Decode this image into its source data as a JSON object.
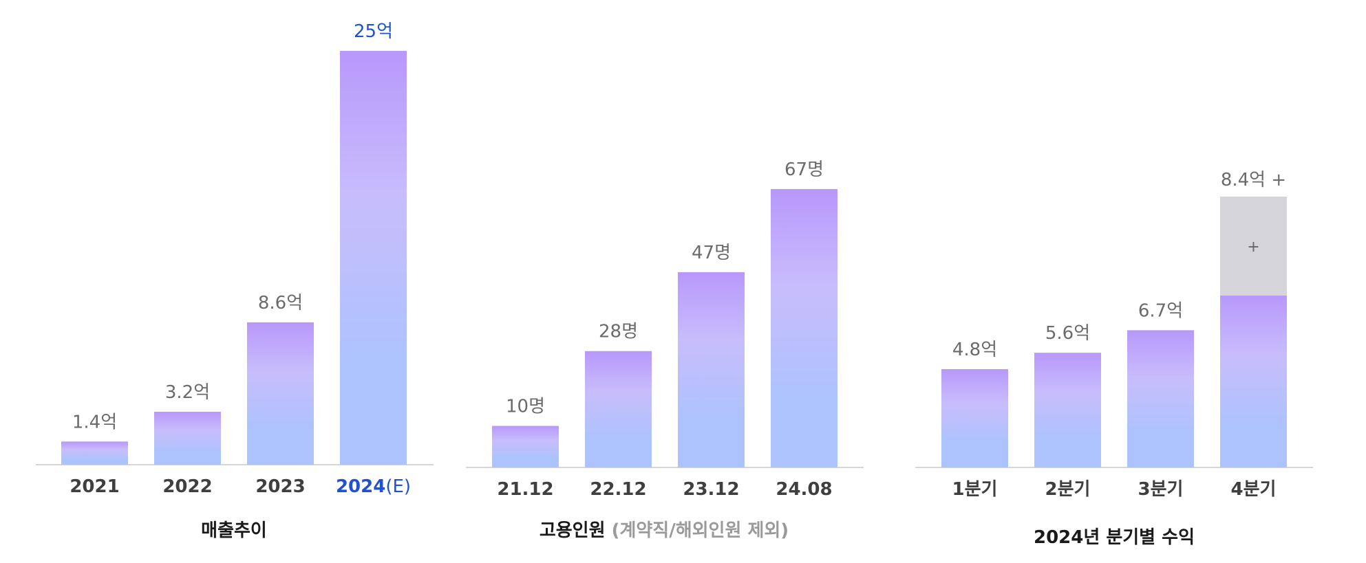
{
  "colors": {
    "bar_top": "#b898fb",
    "bar_mid": "#c8bdfc",
    "bar_bottom": "#adc3fd",
    "highlight": "#2151d3",
    "projection": "#d5d5d9",
    "value_text": "#6b6b6b",
    "tick_text": "#3f3f3f",
    "subtitle_text": "#9a9a9a",
    "axis": "#d6d6d6"
  },
  "chart_data": [
    {
      "type": "bar",
      "title": "매출추이",
      "categories": [
        "2021",
        "2022",
        "2023",
        "2024"
      ],
      "category_suffixes": [
        "",
        "",
        "",
        "(E)"
      ],
      "highlight_index": 3,
      "values": [
        1.4,
        3.2,
        8.6,
        25
      ],
      "value_labels": [
        "1.4억",
        "3.2억",
        "8.6억",
        "25억"
      ],
      "grid": false,
      "legend": "none"
    },
    {
      "type": "bar",
      "title": "고용인원",
      "subtitle": "(계약직/해외인원 제외)",
      "categories": [
        "21.12",
        "22.12",
        "23.12",
        "24.08"
      ],
      "values": [
        10,
        28,
        47,
        67
      ],
      "value_labels": [
        "10명",
        "28명",
        "47명",
        "67명"
      ],
      "grid": false,
      "legend": "none"
    },
    {
      "type": "bar",
      "title": "2024년 분기별 수익",
      "categories": [
        "1분기",
        "2분기",
        "3분기",
        "4분기"
      ],
      "values": [
        4.8,
        5.6,
        6.7,
        8.4
      ],
      "value_labels": [
        "4.8억",
        "5.6억",
        "6.7억",
        "8.4억 +"
      ],
      "additional_label": "+",
      "grid": false,
      "legend": "none"
    }
  ]
}
